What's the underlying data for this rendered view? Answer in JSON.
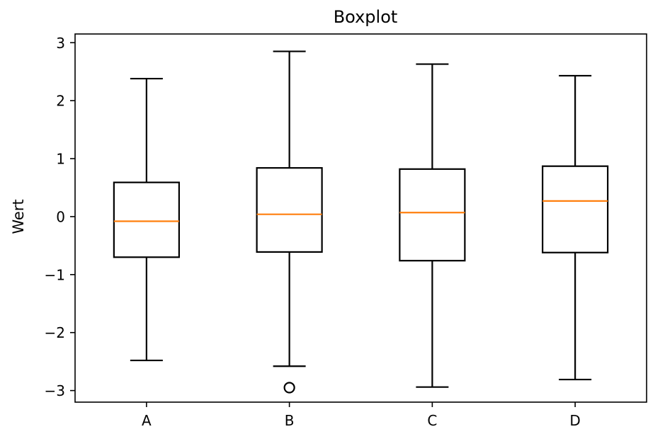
{
  "chart_data": {
    "type": "box",
    "title": "Boxplot",
    "xlabel": "",
    "ylabel": "Wert",
    "ylim": [
      -3.2,
      3.15
    ],
    "yticks": [
      3,
      2,
      1,
      0,
      -1,
      -2,
      -3
    ],
    "ytick_labels": [
      "3",
      "2",
      "1",
      "0",
      "−1",
      "−2",
      "−3"
    ],
    "grid": false,
    "categories": [
      "A",
      "B",
      "C",
      "D"
    ],
    "boxes": [
      {
        "category": "A",
        "whisker_low": -2.48,
        "q1": -0.7,
        "median": -0.08,
        "q3": 0.59,
        "whisker_high": 2.38,
        "outliers": []
      },
      {
        "category": "B",
        "whisker_low": -2.58,
        "q1": -0.61,
        "median": 0.04,
        "q3": 0.84,
        "whisker_high": 2.85,
        "outliers": [
          -2.95
        ]
      },
      {
        "category": "C",
        "whisker_low": -2.94,
        "q1": -0.76,
        "median": 0.07,
        "q3": 0.82,
        "whisker_high": 2.63,
        "outliers": []
      },
      {
        "category": "D",
        "whisker_low": -2.81,
        "q1": -0.62,
        "median": 0.27,
        "q3": 0.87,
        "whisker_high": 2.43,
        "outliers": []
      }
    ],
    "colors": {
      "box": "#000000",
      "median": "#ff7f0e",
      "outlier": "#000000",
      "axes": "#000000"
    }
  }
}
